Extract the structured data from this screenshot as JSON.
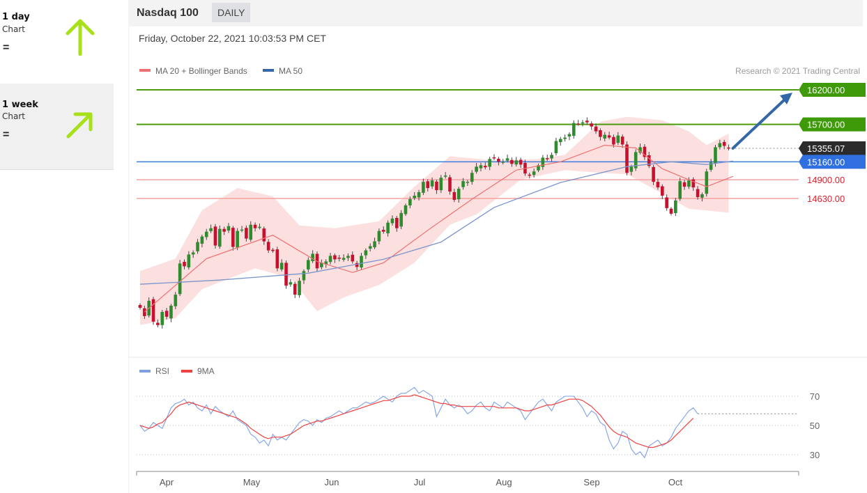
{
  "sidebar": {
    "panels": [
      {
        "period": "1 day",
        "subtitle": "Chart",
        "status": "=",
        "arrow": "up-arrow"
      },
      {
        "period": "1 week",
        "subtitle": "Chart",
        "status": "=",
        "arrow": "up-right-arrow"
      }
    ]
  },
  "header": {
    "instrument": "Nasdaq 100",
    "period_tag": "DAILY"
  },
  "datetime": "Friday, October 22, 2021 10:03:53 PM CET",
  "colors": {
    "bull": "#2e8b2e",
    "bear": "#c8102e",
    "ma20": "#f07070",
    "ma50": "#7a95cc",
    "band": "#fcd9d9",
    "support_green": "#4a9c0e",
    "rsi": "#7da0e6",
    "rsi_ma": "#f04040",
    "accent_arrow": "#3467a8",
    "arrow_lime": "#a8e01a"
  },
  "chart_data": [
    {
      "type": "candlestick",
      "title": "Nasdaq 100",
      "legend": [
        {
          "name": "MA 20 + Bollinger Bands"
        },
        {
          "name": "MA 50"
        }
      ],
      "credit": "Research © 2021 Trading Central",
      "x_labels": [
        "Apr",
        "May",
        "Jun",
        "Jul",
        "Aug",
        "Sep",
        "Oct"
      ],
      "y_range": [
        13000,
        16300
      ],
      "levels": [
        {
          "value": 16200,
          "label": "16200.00",
          "kind": "target"
        },
        {
          "value": 15700,
          "label": "15700.00",
          "kind": "resistance"
        },
        {
          "value": 15355.07,
          "label": "15355.07",
          "kind": "last"
        },
        {
          "value": 15160,
          "label": "15160.00",
          "kind": "pivot"
        },
        {
          "value": 14900,
          "label": "14900.00",
          "kind": "support"
        },
        {
          "value": 14630,
          "label": "14630.00",
          "kind": "support"
        }
      ],
      "closes": [
        13050,
        12930,
        13150,
        12850,
        12800,
        12990,
        12920,
        13080,
        13240,
        13690,
        13650,
        13820,
        13850,
        14000,
        14080,
        14150,
        14200,
        13950,
        14190,
        14150,
        14230,
        13930,
        14160,
        14180,
        14050,
        14250,
        14200,
        14220,
        14010,
        13880,
        13870,
        13620,
        13700,
        13370,
        13420,
        13240,
        13440,
        13580,
        13740,
        13830,
        13620,
        13700,
        13720,
        13800,
        13750,
        13760,
        13770,
        13800,
        13720,
        13640,
        13800,
        13880,
        13940,
        14010,
        14160,
        14150,
        14280,
        14340,
        14200,
        14420,
        14530,
        14620,
        14670,
        14720,
        14870,
        14780,
        14890,
        14750,
        14930,
        14960,
        14730,
        14610,
        14770,
        14880,
        14870,
        15000,
        15090,
        15110,
        15080,
        15200,
        15220,
        15160,
        15160,
        15210,
        15130,
        15180,
        15120,
        14990,
        14970,
        15020,
        15110,
        15220,
        15200,
        15260,
        15460,
        15490,
        15510,
        15560,
        15720,
        15710,
        15730,
        15730,
        15670,
        15600,
        15520,
        15550,
        15510,
        15410,
        15540,
        15410,
        15000,
        15090,
        15300,
        15370,
        15230,
        15100,
        14870,
        14790,
        14670,
        14490,
        14410,
        14600,
        14880,
        14800,
        14890,
        14790,
        14650,
        14690,
        15020,
        15150,
        15370,
        15430,
        15390,
        15360
      ],
      "ma20_points": [
        [
          1,
          12990
        ],
        [
          15,
          13760
        ],
        [
          30,
          14100
        ],
        [
          40,
          13720
        ],
        [
          48,
          13560
        ],
        [
          55,
          13700
        ],
        [
          65,
          14170
        ],
        [
          75,
          14620
        ],
        [
          85,
          15040
        ],
        [
          95,
          15160
        ],
        [
          105,
          15400
        ],
        [
          112,
          15360
        ],
        [
          118,
          15060
        ],
        [
          124,
          14900
        ],
        [
          128,
          14800
        ],
        [
          134,
          14950
        ]
      ],
      "ma50_points": [
        [
          0,
          13390
        ],
        [
          18,
          13450
        ],
        [
          38,
          13550
        ],
        [
          55,
          13750
        ],
        [
          68,
          14000
        ],
        [
          80,
          14500
        ],
        [
          95,
          14860
        ],
        [
          110,
          15090
        ],
        [
          120,
          15160
        ],
        [
          128,
          15120
        ],
        [
          134,
          15170
        ]
      ],
      "bands_upper": [
        [
          0,
          13580
        ],
        [
          8,
          13760
        ],
        [
          14,
          14460
        ],
        [
          22,
          14780
        ],
        [
          30,
          14660
        ],
        [
          36,
          14240
        ],
        [
          44,
          14200
        ],
        [
          54,
          14300
        ],
        [
          62,
          14800
        ],
        [
          70,
          15240
        ],
        [
          80,
          15180
        ],
        [
          90,
          15200
        ],
        [
          96,
          15260
        ],
        [
          104,
          15740
        ],
        [
          110,
          15810
        ],
        [
          118,
          15760
        ],
        [
          124,
          15600
        ],
        [
          128,
          15400
        ],
        [
          134,
          15600
        ]
      ],
      "bands_lower": [
        [
          0,
          12800
        ],
        [
          8,
          12900
        ],
        [
          14,
          13320
        ],
        [
          26,
          13620
        ],
        [
          34,
          13480
        ],
        [
          40,
          13000
        ],
        [
          46,
          13200
        ],
        [
          54,
          13380
        ],
        [
          62,
          13700
        ],
        [
          70,
          14250
        ],
        [
          76,
          14400
        ],
        [
          86,
          14900
        ],
        [
          96,
          15040
        ],
        [
          104,
          15000
        ],
        [
          110,
          14980
        ],
        [
          118,
          14700
        ],
        [
          124,
          14480
        ],
        [
          134,
          14420
        ]
      ]
    },
    {
      "type": "line",
      "title": "RSI",
      "legend": [
        {
          "name": "RSI"
        },
        {
          "name": "9MA"
        }
      ],
      "y_ticks": [
        70,
        50,
        30
      ],
      "rsi_values": [
        50,
        46,
        48,
        52,
        50,
        48,
        55,
        62,
        65,
        66,
        68,
        64,
        66,
        62,
        60,
        64,
        58,
        63,
        60,
        58,
        56,
        60,
        54,
        52,
        50,
        44,
        42,
        38,
        40,
        36,
        44,
        40,
        42,
        40,
        44,
        48,
        52,
        54,
        53,
        50,
        54,
        52,
        55,
        56,
        58,
        60,
        58,
        60,
        62,
        62,
        64,
        66,
        65,
        66,
        68,
        70,
        68,
        66,
        70,
        72,
        72,
        74,
        76,
        72,
        74,
        72,
        70,
        56,
        62,
        68,
        64,
        62,
        64,
        62,
        58,
        60,
        64,
        66,
        62,
        60,
        66,
        64,
        62,
        66,
        64,
        62,
        60,
        54,
        58,
        62,
        66,
        68,
        64,
        60,
        66,
        68,
        70,
        70,
        70,
        66,
        62,
        56,
        60,
        58,
        52,
        50,
        40,
        34,
        38,
        46,
        44,
        34,
        30,
        32,
        28,
        36,
        38,
        40,
        36,
        38,
        42,
        48,
        52,
        56,
        60,
        62,
        58
      ],
      "rsi_ma_values": [
        50,
        49,
        48,
        49,
        51,
        52,
        55,
        58,
        62,
        64,
        65,
        66,
        65,
        64,
        63,
        62,
        61,
        60,
        59,
        58,
        57,
        56,
        55,
        53,
        51,
        48,
        46,
        44,
        42,
        41,
        42,
        42,
        42,
        43,
        44,
        46,
        48,
        50,
        51,
        52,
        53,
        53,
        54,
        55,
        56,
        57,
        58,
        59,
        60,
        61,
        62,
        63,
        64,
        65,
        66,
        67,
        67,
        68,
        69,
        70,
        70,
        70,
        71,
        70,
        69,
        68,
        67,
        66,
        65,
        65,
        64,
        64,
        63,
        63,
        63,
        63,
        63,
        63,
        63,
        63,
        63,
        62,
        62,
        62,
        62,
        62,
        61,
        60,
        60,
        61,
        62,
        63,
        64,
        64,
        65,
        66,
        67,
        68,
        68,
        68,
        67,
        65,
        63,
        60,
        57,
        53,
        49,
        46,
        44,
        43,
        42,
        40,
        38,
        37,
        36,
        35,
        35,
        36,
        37,
        38,
        40,
        43,
        46,
        49,
        52,
        55
      ]
    }
  ]
}
